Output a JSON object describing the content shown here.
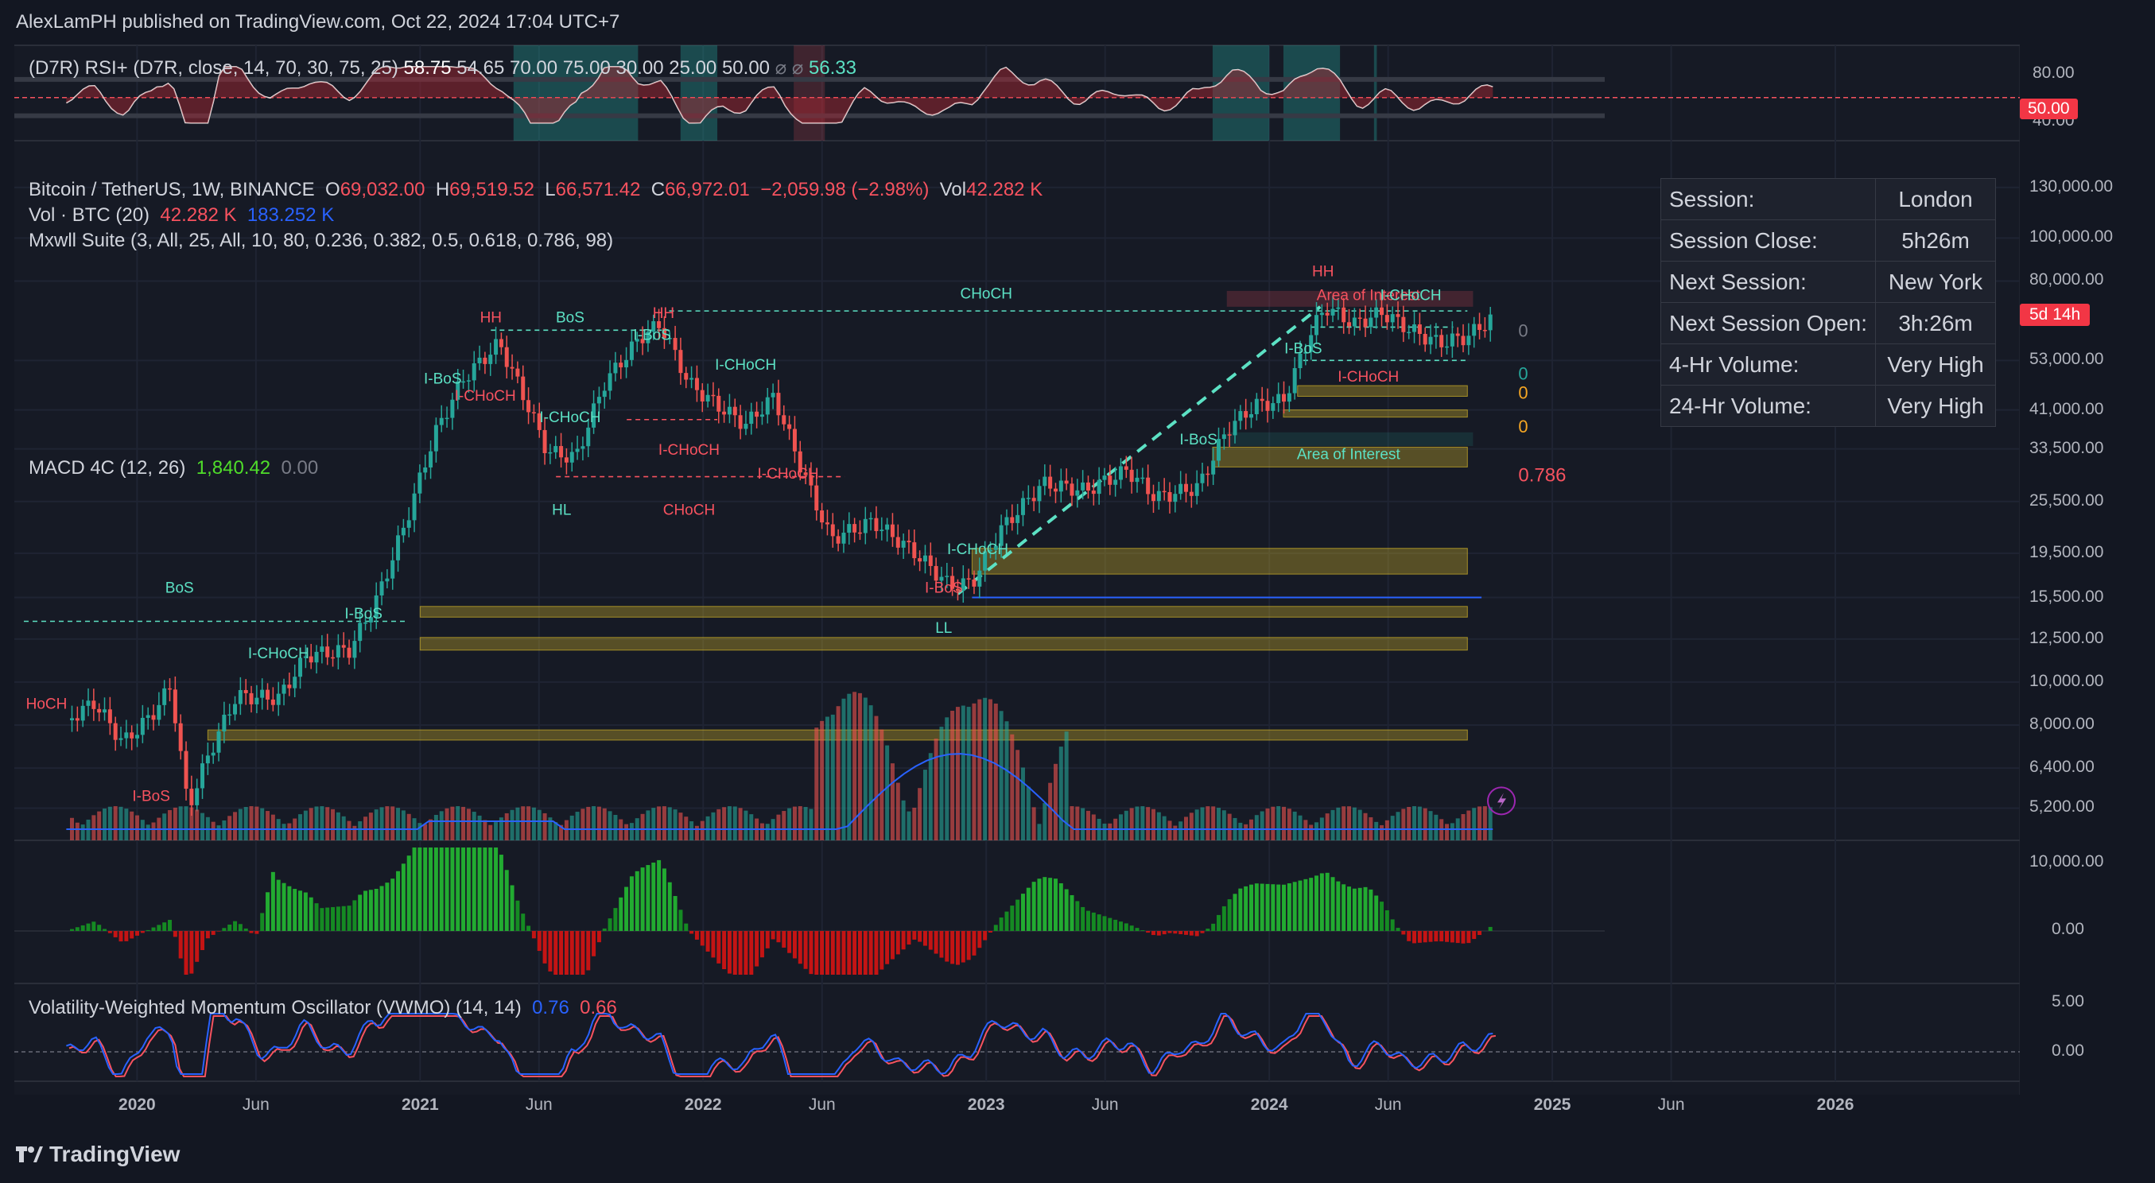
{
  "header": {
    "publisher": "AlexLamPH published on TradingView.com, Oct 22, 2024 17:04 UTC+7"
  },
  "footer": {
    "brand": "TradingView"
  },
  "rsi_legend": {
    "name": "(D7R) RSI+ (D7R, close, 14, 70, 30, 75, 25)",
    "vals": [
      "58.75",
      "54.65",
      "70.00",
      "75.00",
      "30.00",
      "25.00",
      "50.00"
    ],
    "na1": "⌀",
    "na2": "⌀",
    "last": "56.33",
    "axis": [
      "80.00",
      "40.00"
    ],
    "badge": "50.00"
  },
  "main_legend": {
    "symbol": "Bitcoin / TetherUS, 1W, BINANCE",
    "o_label": "O",
    "o": "69,032.00",
    "h_label": "H",
    "h": "69,519.52",
    "l_label": "L",
    "l": "66,571.42",
    "c_label": "C",
    "c": "66,972.01",
    "change": "−2,059.98 (−2.98%)",
    "vol_label": "Vol",
    "vol": "42.282 K",
    "vol_ind": "Vol · BTC (20)",
    "vol_ind_v1": "42.282 K",
    "vol_ind_v2": "183.252 K",
    "suite": "Mxwll Suite (3, All, 25, All, 10, 80, 0.236, 0.382, 0.5, 0.618, 0.786, 98)"
  },
  "price_axis": [
    "130,000.00",
    "100,000.00",
    "80,000.00",
    "53,000.00",
    "41,000.00",
    "33,500.00",
    "25,500.00",
    "19,500.00",
    "15,500.00",
    "12,500.00",
    "10,000.00",
    "8,000.00",
    "6,400.00",
    "5,200.00"
  ],
  "price_badge": "5d 14h",
  "macd_legend": {
    "name": "MACD 4C (12, 26)",
    "v1": "1,840.42",
    "v2": "0.00",
    "axis": [
      "10,000.00",
      "0.00"
    ]
  },
  "vwmo_legend": {
    "name": "Volatility-Weighted Momentum Oscillator (VWMO) (14, 14)",
    "v1": "0.76",
    "v2": "0.66",
    "axis": [
      "5.00",
      "0.00"
    ]
  },
  "session_table": {
    "rows": [
      {
        "k": "Session:",
        "v": "London"
      },
      {
        "k": "Session Close:",
        "v": "5h26m"
      },
      {
        "k": "Next Session:",
        "v": "New York"
      },
      {
        "k": "Next Session Open:",
        "v": "3h:26m"
      },
      {
        "k": "4-Hr Volume:",
        "v": "Very High"
      },
      {
        "k": "24-Hr Volume:",
        "v": "Very High"
      }
    ]
  },
  "annotations": {
    "hh1": "HH",
    "bos1": "BoS",
    "hh2": "HH",
    "choch_top": "CHoCH",
    "hh3": "HH",
    "aoi1": "Area of Interest",
    "ichoch_r": "I-CHoCH",
    "ibos_a": "I-BoS",
    "ichoch_a": "I-CHoCH",
    "ichoch_b": "I-CHoCH",
    "ichoch_c": "I-CHoCH",
    "ichoch_d": "I-CHoCH",
    "ichoch_e": "I-CHoCH",
    "ibos_b": "I-BoS",
    "hl": "HL",
    "choch_mid": "CHoCH",
    "ibos_c": "I-BoS",
    "ichoch_f": "I-CHoCH",
    "ibos_d": "I-BoS",
    "ll": "LL",
    "bos_left": "BoS",
    "ibos_e": "I-BoS",
    "ichoch_g": "I-CHoCH",
    "hoch": "HoCH",
    "ibos_f": "I-BoS",
    "ibos_g": "I-BoS",
    "ichoch_h": "I-CHoCH",
    "aoi2": "Area of Interest",
    "fib786": "0.786",
    "f0": "0",
    "f1": "0",
    "f2": "0",
    "f3": "0"
  },
  "chart_data": {
    "type": "candlestick",
    "title": "Bitcoin / TetherUS, 1W, BINANCE",
    "x_ticks": [
      "2020",
      "Jun",
      "2021",
      "Jun",
      "2022",
      "Jun",
      "2023",
      "Jun",
      "2024",
      "Jun",
      "2025",
      "Jun",
      "2026"
    ],
    "y_scale": "log",
    "series": [
      {
        "name": "Bitcoin / TetherUS",
        "close_path": [
          [
            2019.75,
            8200
          ],
          [
            2019.85,
            9000
          ],
          [
            2019.95,
            7300
          ],
          [
            2020.05,
            8400
          ],
          [
            2020.12,
            9800
          ],
          [
            2020.18,
            5200
          ],
          [
            2020.25,
            6800
          ],
          [
            2020.35,
            9300
          ],
          [
            2020.5,
            9200
          ],
          [
            2020.6,
            11500
          ],
          [
            2020.75,
            11800
          ],
          [
            2020.85,
            15500
          ],
          [
            2020.95,
            23000
          ],
          [
            2021.05,
            36000
          ],
          [
            2021.15,
            48000
          ],
          [
            2021.28,
            58000
          ],
          [
            2021.38,
            42000
          ],
          [
            2021.45,
            33000
          ],
          [
            2021.55,
            32000
          ],
          [
            2021.65,
            47000
          ],
          [
            2021.78,
            60000
          ],
          [
            2021.85,
            64000
          ],
          [
            2021.95,
            47000
          ],
          [
            2022.05,
            42000
          ],
          [
            2022.15,
            38000
          ],
          [
            2022.25,
            44000
          ],
          [
            2022.35,
            30000
          ],
          [
            2022.45,
            21000
          ],
          [
            2022.6,
            23000
          ],
          [
            2022.75,
            19500
          ],
          [
            2022.87,
            16500
          ],
          [
            2022.95,
            16700
          ],
          [
            2023.05,
            22000
          ],
          [
            2023.2,
            28000
          ],
          [
            2023.35,
            27000
          ],
          [
            2023.5,
            30000
          ],
          [
            2023.6,
            26000
          ],
          [
            2023.75,
            27500
          ],
          [
            2023.85,
            37000
          ],
          [
            2023.95,
            42000
          ],
          [
            2024.05,
            43000
          ],
          [
            2024.15,
            62000
          ],
          [
            2024.2,
            70000
          ],
          [
            2024.3,
            64000
          ],
          [
            2024.4,
            68000
          ],
          [
            2024.5,
            62000
          ],
          [
            2024.6,
            58000
          ],
          [
            2024.7,
            60000
          ],
          [
            2024.8,
            66972
          ]
        ]
      }
    ],
    "volume_ma": "Vol · BTC (20)",
    "macd": {
      "value": 1840.42
    },
    "vwmo": {
      "values": [
        0.76,
        0.66
      ]
    }
  }
}
